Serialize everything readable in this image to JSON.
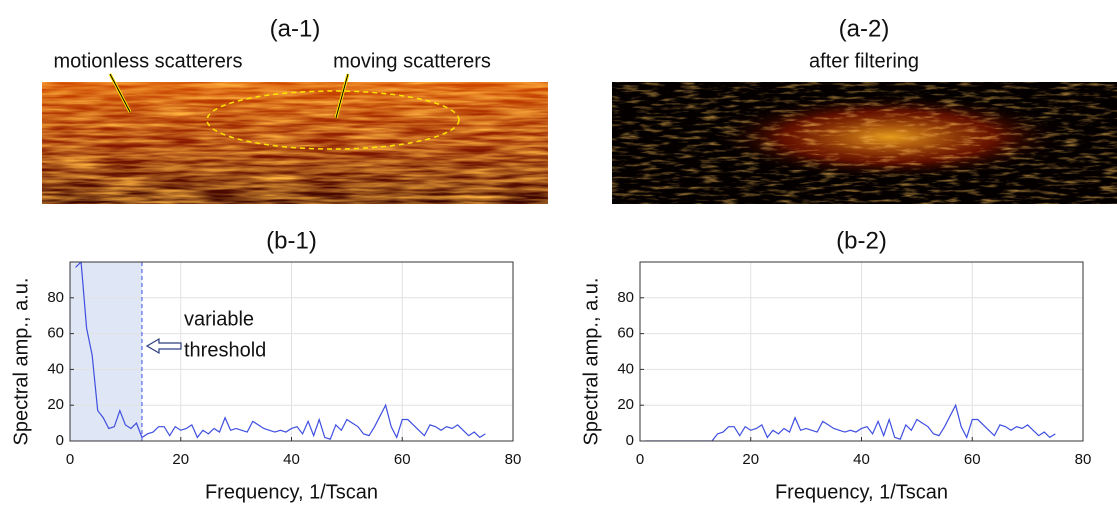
{
  "images": [
    {
      "title": "(a-1)",
      "annotations": [
        "motionless scatterers",
        "moving scatterers"
      ]
    },
    {
      "title": "(a-2)",
      "subtitle": "after filtering"
    }
  ],
  "chart_data": [
    {
      "type": "line",
      "title": "(b-1)",
      "xlabel": "Frequency, 1/Tscan",
      "ylabel": "Spectral amp., a.u.",
      "color": "#3f4fe0",
      "grid": true,
      "xlim": [
        0,
        80
      ],
      "xticks": [
        0,
        20,
        40,
        60,
        80
      ],
      "ylim": [
        0,
        100
      ],
      "yticks": [
        0,
        20,
        40,
        60,
        80
      ],
      "threshold": 13,
      "annotation_lines": [
        "variable",
        "threshold"
      ],
      "x": [
        1,
        2,
        3,
        4,
        5,
        6,
        7,
        8,
        9,
        10,
        11,
        12,
        13,
        14,
        15,
        16,
        17,
        18,
        19,
        20,
        21,
        22,
        23,
        24,
        25,
        26,
        27,
        28,
        29,
        30,
        31,
        32,
        33,
        34,
        35,
        36,
        37,
        38,
        39,
        40,
        41,
        42,
        43,
        44,
        45,
        46,
        47,
        48,
        49,
        50,
        51,
        52,
        53,
        54,
        55,
        56,
        57,
        58,
        59,
        60,
        61,
        62,
        63,
        64,
        65,
        66,
        67,
        68,
        69,
        70,
        71,
        72,
        73,
        74,
        75
      ],
      "values": [
        97,
        100,
        63,
        48,
        17,
        13,
        7,
        8,
        17,
        9,
        7,
        10,
        2,
        4,
        5,
        8,
        8,
        3,
        8,
        6,
        7,
        9,
        2,
        6,
        4,
        7,
        5,
        13,
        6,
        7,
        6,
        5,
        11,
        9,
        7,
        6,
        5,
        6,
        5,
        7,
        8,
        4,
        11,
        3,
        12,
        2,
        1,
        9,
        6,
        12,
        10,
        8,
        4,
        3,
        8,
        14,
        20,
        8,
        2,
        12,
        12,
        9,
        6,
        3,
        9,
        8,
        6,
        8,
        7,
        9,
        6,
        3,
        5,
        2,
        4
      ]
    },
    {
      "type": "line",
      "title": "(b-2)",
      "xlabel": "Frequency, 1/Tscan",
      "ylabel": "Spectral amp., a.u.",
      "color": "#3f4fe0",
      "grid": true,
      "xlim": [
        0,
        80
      ],
      "xticks": [
        0,
        20,
        40,
        60,
        80
      ],
      "ylim": [
        0,
        100
      ],
      "yticks": [
        0,
        20,
        40,
        60,
        80
      ],
      "x": [
        1,
        2,
        3,
        4,
        5,
        6,
        7,
        8,
        9,
        10,
        11,
        12,
        13,
        14,
        15,
        16,
        17,
        18,
        19,
        20,
        21,
        22,
        23,
        24,
        25,
        26,
        27,
        28,
        29,
        30,
        31,
        32,
        33,
        34,
        35,
        36,
        37,
        38,
        39,
        40,
        41,
        42,
        43,
        44,
        45,
        46,
        47,
        48,
        49,
        50,
        51,
        52,
        53,
        54,
        55,
        56,
        57,
        58,
        59,
        60,
        61,
        62,
        63,
        64,
        65,
        66,
        67,
        68,
        69,
        70,
        71,
        72,
        73,
        74,
        75
      ],
      "values": [
        0,
        0,
        0,
        0,
        0,
        0,
        0,
        0,
        0,
        0,
        0,
        0,
        0,
        4,
        5,
        8,
        8,
        3,
        8,
        6,
        7,
        9,
        2,
        6,
        4,
        7,
        5,
        13,
        6,
        7,
        6,
        5,
        11,
        9,
        7,
        6,
        5,
        6,
        5,
        7,
        8,
        4,
        11,
        3,
        12,
        2,
        1,
        9,
        6,
        12,
        10,
        8,
        4,
        3,
        8,
        14,
        20,
        8,
        2,
        12,
        12,
        9,
        6,
        3,
        9,
        8,
        6,
        8,
        7,
        9,
        6,
        3,
        5,
        2,
        4
      ]
    }
  ]
}
